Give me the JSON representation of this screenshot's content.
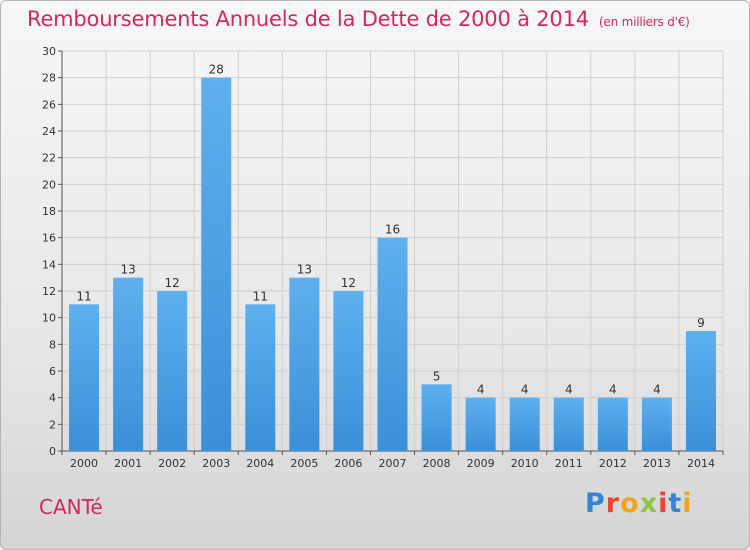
{
  "header": {
    "title": "Remboursements Annuels de la Dette de 2000 à 2014",
    "subtitle": "(en milliers d'€)"
  },
  "footer": {
    "commune": "CANTé",
    "logo_letters": [
      "P",
      "r",
      "o",
      "x",
      "i",
      "t",
      "i"
    ],
    "logo_colors": [
      "#2f86d6",
      "#e8462e",
      "#f2a21b",
      "#8dc63f",
      "#e8462e",
      "#2f86d6",
      "#f2a21b"
    ]
  },
  "chart_data": {
    "type": "bar",
    "title": "Remboursements Annuels de la Dette de 2000 à 2014",
    "subtitle": "(en milliers d'€)",
    "categories": [
      "2000",
      "2001",
      "2002",
      "2003",
      "2004",
      "2005",
      "2006",
      "2007",
      "2008",
      "2009",
      "2010",
      "2011",
      "2012",
      "2013",
      "2014"
    ],
    "values": [
      11,
      13,
      12,
      28,
      11,
      13,
      12,
      16,
      5,
      4,
      4,
      4,
      4,
      4,
      9
    ],
    "ylim": [
      0,
      30
    ],
    "yticks": [
      0,
      2,
      4,
      6,
      8,
      10,
      12,
      14,
      16,
      18,
      20,
      22,
      24,
      26,
      28,
      30
    ],
    "grid": true,
    "bar_color": "#3a8fd8",
    "bar_color_light": "#5eb0ee",
    "text_color": "#333333",
    "xlabel": "",
    "ylabel": ""
  }
}
